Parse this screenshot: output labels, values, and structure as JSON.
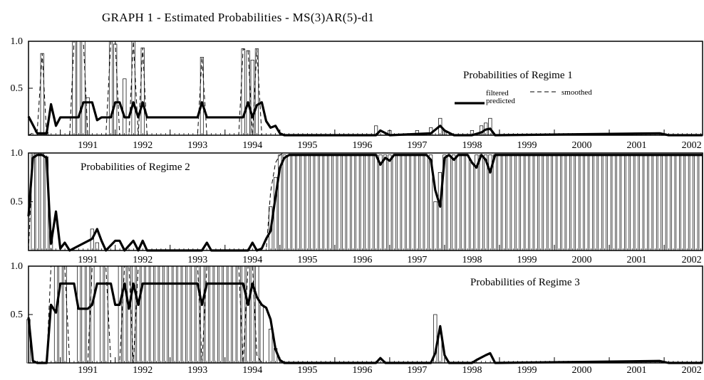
{
  "title": "GRAPH 1 - Estimated Probabilities - MS(3)AR(5)-d1",
  "legend": {
    "filtered": "filtered",
    "predicted": "predicted",
    "smoothed": "smoothed"
  },
  "chart_data": [
    {
      "type": "bar",
      "panel_title": "Probabilities of Regime 1",
      "title_placement": "top-right",
      "x_range": [
        1990.42,
        2002.7
      ],
      "year_labels": [
        "1991",
        "1992",
        "1993",
        "1994",
        "1995",
        "1996",
        "1997",
        "1998",
        "1999",
        "2000",
        "2001",
        "2002"
      ],
      "y_ticks": [
        "1.0",
        "0.5"
      ],
      "ylim": [
        0,
        1.0
      ],
      "filtered_bars": [
        [
          1990.67,
          0.87
        ],
        [
          1990.75,
          0.03
        ],
        [
          1991.25,
          1.0
        ],
        [
          1991.33,
          1.0
        ],
        [
          1991.42,
          1.0
        ],
        [
          1991.5,
          0.4
        ],
        [
          1991.92,
          1.0
        ],
        [
          1992.0,
          0.97
        ],
        [
          1992.17,
          0.6
        ],
        [
          1992.33,
          1.0
        ],
        [
          1992.5,
          0.93
        ],
        [
          1993.58,
          0.83
        ],
        [
          1994.33,
          0.92
        ],
        [
          1994.42,
          0.9
        ],
        [
          1994.5,
          0.8
        ],
        [
          1994.58,
          0.92
        ],
        [
          1996.75,
          0.1
        ],
        [
          1997.0,
          0.05
        ],
        [
          1997.5,
          0.05
        ],
        [
          1997.75,
          0.08
        ],
        [
          1997.92,
          0.18
        ],
        [
          1998.0,
          0.05
        ],
        [
          1998.5,
          0.05
        ],
        [
          1998.67,
          0.1
        ],
        [
          1998.75,
          0.13
        ],
        [
          1998.83,
          0.18
        ]
      ],
      "predicted": [
        [
          1990.42,
          0.2
        ],
        [
          1990.58,
          0.02
        ],
        [
          1990.75,
          0.02
        ],
        [
          1990.83,
          0.33
        ],
        [
          1990.92,
          0.1
        ],
        [
          1991.0,
          0.19
        ],
        [
          1991.08,
          0.19
        ],
        [
          1991.17,
          0.19
        ],
        [
          1991.33,
          0.19
        ],
        [
          1991.42,
          0.35
        ],
        [
          1991.58,
          0.35
        ],
        [
          1991.67,
          0.16
        ],
        [
          1991.75,
          0.19
        ],
        [
          1991.92,
          0.19
        ],
        [
          1992.0,
          0.35
        ],
        [
          1992.08,
          0.35
        ],
        [
          1992.17,
          0.19
        ],
        [
          1992.25,
          0.19
        ],
        [
          1992.33,
          0.35
        ],
        [
          1992.42,
          0.19
        ],
        [
          1992.5,
          0.35
        ],
        [
          1992.58,
          0.19
        ],
        [
          1993.5,
          0.19
        ],
        [
          1993.58,
          0.35
        ],
        [
          1993.67,
          0.19
        ],
        [
          1994.33,
          0.19
        ],
        [
          1994.42,
          0.35
        ],
        [
          1994.5,
          0.19
        ],
        [
          1994.58,
          0.32
        ],
        [
          1994.67,
          0.35
        ],
        [
          1994.75,
          0.15
        ],
        [
          1994.83,
          0.08
        ],
        [
          1994.92,
          0.1
        ],
        [
          1995.0,
          0.02
        ],
        [
          1995.08,
          0.0
        ],
        [
          1996.75,
          0.0
        ],
        [
          1996.83,
          0.05
        ],
        [
          1997.0,
          0.0
        ],
        [
          1997.75,
          0.02
        ],
        [
          1997.92,
          0.1
        ],
        [
          1998.0,
          0.05
        ],
        [
          1998.17,
          0.0
        ],
        [
          1998.5,
          0.0
        ],
        [
          1998.67,
          0.03
        ],
        [
          1998.75,
          0.06
        ],
        [
          1998.83,
          0.07
        ],
        [
          1998.92,
          0.0
        ],
        [
          2001.92,
          0.02
        ],
        [
          2002.08,
          0.0
        ],
        [
          2002.7,
          0.0
        ]
      ],
      "smoothed": [
        [
          1990.42,
          0.0
        ],
        [
          1990.58,
          0.05
        ],
        [
          1990.67,
          0.87
        ],
        [
          1990.75,
          0.0
        ],
        [
          1991.17,
          0.0
        ],
        [
          1991.25,
          1.0
        ],
        [
          1991.42,
          1.0
        ],
        [
          1991.5,
          0.0
        ],
        [
          1991.83,
          0.0
        ],
        [
          1991.92,
          1.0
        ],
        [
          1992.0,
          1.0
        ],
        [
          1992.08,
          0.0
        ],
        [
          1992.25,
          0.0
        ],
        [
          1992.33,
          1.0
        ],
        [
          1992.42,
          0.0
        ],
        [
          1992.5,
          0.93
        ],
        [
          1992.58,
          0.0
        ],
        [
          1993.5,
          0.0
        ],
        [
          1993.58,
          0.83
        ],
        [
          1993.67,
          0.0
        ],
        [
          1994.25,
          0.0
        ],
        [
          1994.33,
          0.92
        ],
        [
          1994.42,
          0.9
        ],
        [
          1994.5,
          0.0
        ],
        [
          1994.58,
          0.92
        ],
        [
          1994.67,
          0.0
        ],
        [
          2002.7,
          0.0
        ]
      ]
    },
    {
      "type": "bar",
      "panel_title": "Probabilities of Regime 2",
      "title_placement": "top-left",
      "x_range": [
        1990.42,
        2002.7
      ],
      "year_labels": [
        "1991",
        "1992",
        "1993",
        "1994",
        "1995",
        "1996",
        "1997",
        "1998",
        "1999",
        "2000",
        "2001",
        "2002"
      ],
      "y_ticks": [
        "1.0",
        "0.5"
      ],
      "ylim": [
        0,
        1.0
      ],
      "filtered_bars": [
        [
          1990.5,
          1.0
        ],
        [
          1990.58,
          1.0
        ],
        [
          1990.67,
          1.0
        ],
        [
          1990.75,
          0.96
        ],
        [
          1990.83,
          0.2
        ],
        [
          1991.58,
          0.22
        ],
        [
          1991.67,
          0.08
        ],
        [
          1994.83,
          0.45
        ],
        [
          1994.92,
          0.75
        ]
      ],
      "filtered_dense": {
        "from": 1995.0,
        "to": 2002.67,
        "step": 0.0833,
        "value": 0.98,
        "dips": [
          [
            1997.83,
            0.5
          ],
          [
            1997.92,
            0.8
          ],
          [
            1998.5,
            0.9
          ]
        ]
      },
      "predicted": [
        [
          1990.42,
          0.35
        ],
        [
          1990.5,
          0.95
        ],
        [
          1990.58,
          0.98
        ],
        [
          1990.67,
          0.98
        ],
        [
          1990.75,
          0.95
        ],
        [
          1990.83,
          0.07
        ],
        [
          1990.92,
          0.4
        ],
        [
          1991.0,
          0.02
        ],
        [
          1991.08,
          0.08
        ],
        [
          1991.17,
          0.0
        ],
        [
          1991.58,
          0.12
        ],
        [
          1991.67,
          0.22
        ],
        [
          1991.75,
          0.1
        ],
        [
          1991.83,
          0.0
        ],
        [
          1992.0,
          0.1
        ],
        [
          1992.08,
          0.1
        ],
        [
          1992.17,
          0.0
        ],
        [
          1992.33,
          0.1
        ],
        [
          1992.42,
          0.0
        ],
        [
          1992.5,
          0.1
        ],
        [
          1992.58,
          0.0
        ],
        [
          1993.58,
          0.0
        ],
        [
          1993.67,
          0.08
        ],
        [
          1993.75,
          0.0
        ],
        [
          1994.42,
          0.0
        ],
        [
          1994.5,
          0.08
        ],
        [
          1994.58,
          0.0
        ],
        [
          1994.67,
          0.02
        ],
        [
          1994.75,
          0.12
        ],
        [
          1994.83,
          0.2
        ],
        [
          1994.92,
          0.55
        ],
        [
          1995.0,
          0.85
        ],
        [
          1995.08,
          0.95
        ],
        [
          1995.17,
          0.98
        ],
        [
          1996.75,
          0.98
        ],
        [
          1996.83,
          0.88
        ],
        [
          1996.92,
          0.95
        ],
        [
          1997.0,
          0.92
        ],
        [
          1997.08,
          0.98
        ],
        [
          1997.67,
          0.98
        ],
        [
          1997.75,
          0.93
        ],
        [
          1997.83,
          0.62
        ],
        [
          1997.92,
          0.45
        ],
        [
          1998.0,
          0.95
        ],
        [
          1998.08,
          0.98
        ],
        [
          1998.17,
          0.93
        ],
        [
          1998.25,
          0.98
        ],
        [
          1998.42,
          0.98
        ],
        [
          1998.5,
          0.9
        ],
        [
          1998.58,
          0.85
        ],
        [
          1998.67,
          0.98
        ],
        [
          1998.75,
          0.93
        ],
        [
          1998.83,
          0.8
        ],
        [
          1998.92,
          0.98
        ],
        [
          2002.7,
          0.98
        ]
      ],
      "smoothed": [
        [
          1990.42,
          0.0
        ],
        [
          1990.5,
          1.0
        ],
        [
          1990.75,
          1.0
        ],
        [
          1990.83,
          0.0
        ],
        [
          1994.75,
          0.0
        ],
        [
          1994.83,
          0.6
        ],
        [
          1994.92,
          0.9
        ],
        [
          1995.0,
          0.98
        ],
        [
          1995.08,
          1.0
        ],
        [
          2002.7,
          1.0
        ]
      ]
    },
    {
      "type": "bar",
      "panel_title": "Probabilities of Regime 3",
      "title_placement": "top-right",
      "x_range": [
        1990.42,
        2002.7
      ],
      "year_labels": [
        "1991",
        "1992",
        "1993",
        "1994",
        "1995",
        "1996",
        "1997",
        "1998",
        "1999",
        "2000",
        "2001",
        "2002"
      ],
      "y_ticks": [
        "1.0",
        "0.5"
      ],
      "ylim": [
        0,
        1.0
      ],
      "filtered_dense": {
        "from": 1990.92,
        "to": 1994.75,
        "step": 0.0833,
        "value": 1.0,
        "dips": [
          [
            1991.17,
            0.0
          ],
          [
            1991.25,
            0.0
          ],
          [
            1991.58,
            0.0
          ],
          [
            1991.67,
            0.0
          ],
          [
            1991.92,
            0.0
          ],
          [
            1992.0,
            0.0
          ],
          [
            1992.33,
            0.0
          ],
          [
            1993.58,
            0.0
          ],
          [
            1994.33,
            0.0
          ],
          [
            1994.58,
            0.75
          ],
          [
            1994.67,
            0.6
          ],
          [
            1994.75,
            0.45
          ]
        ]
      },
      "filtered_bars": [
        [
          1990.42,
          0.45
        ],
        [
          1994.83,
          0.35
        ],
        [
          1994.92,
          0.15
        ],
        [
          1997.83,
          0.5
        ],
        [
          1997.92,
          0.3
        ]
      ],
      "predicted": [
        [
          1990.42,
          0.47
        ],
        [
          1990.5,
          0.02
        ],
        [
          1990.58,
          0.0
        ],
        [
          1990.75,
          0.0
        ],
        [
          1990.83,
          0.6
        ],
        [
          1990.92,
          0.52
        ],
        [
          1991.0,
          0.82
        ],
        [
          1991.08,
          0.82
        ],
        [
          1991.17,
          0.82
        ],
        [
          1991.25,
          0.82
        ],
        [
          1991.33,
          0.56
        ],
        [
          1991.5,
          0.56
        ],
        [
          1991.58,
          0.6
        ],
        [
          1991.67,
          0.82
        ],
        [
          1991.75,
          0.82
        ],
        [
          1991.92,
          0.82
        ],
        [
          1992.0,
          0.6
        ],
        [
          1992.08,
          0.6
        ],
        [
          1992.17,
          0.82
        ],
        [
          1992.25,
          0.56
        ],
        [
          1992.33,
          0.82
        ],
        [
          1992.42,
          0.6
        ],
        [
          1992.5,
          0.82
        ],
        [
          1993.5,
          0.82
        ],
        [
          1993.58,
          0.6
        ],
        [
          1993.67,
          0.82
        ],
        [
          1994.33,
          0.82
        ],
        [
          1994.42,
          0.6
        ],
        [
          1994.5,
          0.82
        ],
        [
          1994.58,
          0.68
        ],
        [
          1994.67,
          0.6
        ],
        [
          1994.75,
          0.57
        ],
        [
          1994.83,
          0.45
        ],
        [
          1994.92,
          0.14
        ],
        [
          1995.0,
          0.03
        ],
        [
          1995.08,
          0.0
        ],
        [
          1996.75,
          0.0
        ],
        [
          1996.83,
          0.05
        ],
        [
          1996.92,
          0.0
        ],
        [
          1997.75,
          0.0
        ],
        [
          1997.83,
          0.1
        ],
        [
          1997.92,
          0.38
        ],
        [
          1998.0,
          0.08
        ],
        [
          1998.08,
          0.0
        ],
        [
          1998.5,
          0.0
        ],
        [
          1998.58,
          0.03
        ],
        [
          1998.75,
          0.08
        ],
        [
          1998.83,
          0.1
        ],
        [
          1998.92,
          0.0
        ],
        [
          2001.92,
          0.02
        ],
        [
          2002.08,
          0.0
        ],
        [
          2002.7,
          0.0
        ]
      ],
      "smoothed": [
        [
          1990.42,
          0.0
        ],
        [
          1990.75,
          0.0
        ],
        [
          1990.83,
          1.0
        ],
        [
          1991.08,
          1.0
        ],
        [
          1991.17,
          0.0
        ],
        [
          1991.5,
          0.0
        ],
        [
          1991.58,
          1.0
        ],
        [
          1991.83,
          1.0
        ],
        [
          1991.92,
          0.0
        ],
        [
          1992.08,
          0.0
        ],
        [
          1992.17,
          1.0
        ],
        [
          1992.25,
          1.0
        ],
        [
          1992.33,
          0.0
        ],
        [
          1992.42,
          1.0
        ],
        [
          1993.5,
          1.0
        ],
        [
          1993.58,
          0.0
        ],
        [
          1993.67,
          1.0
        ],
        [
          1994.25,
          1.0
        ],
        [
          1994.33,
          0.0
        ],
        [
          1994.42,
          1.0
        ],
        [
          1994.5,
          1.0
        ],
        [
          1994.58,
          0.08
        ],
        [
          1994.67,
          0.0
        ],
        [
          2002.7,
          0.0
        ]
      ]
    }
  ]
}
